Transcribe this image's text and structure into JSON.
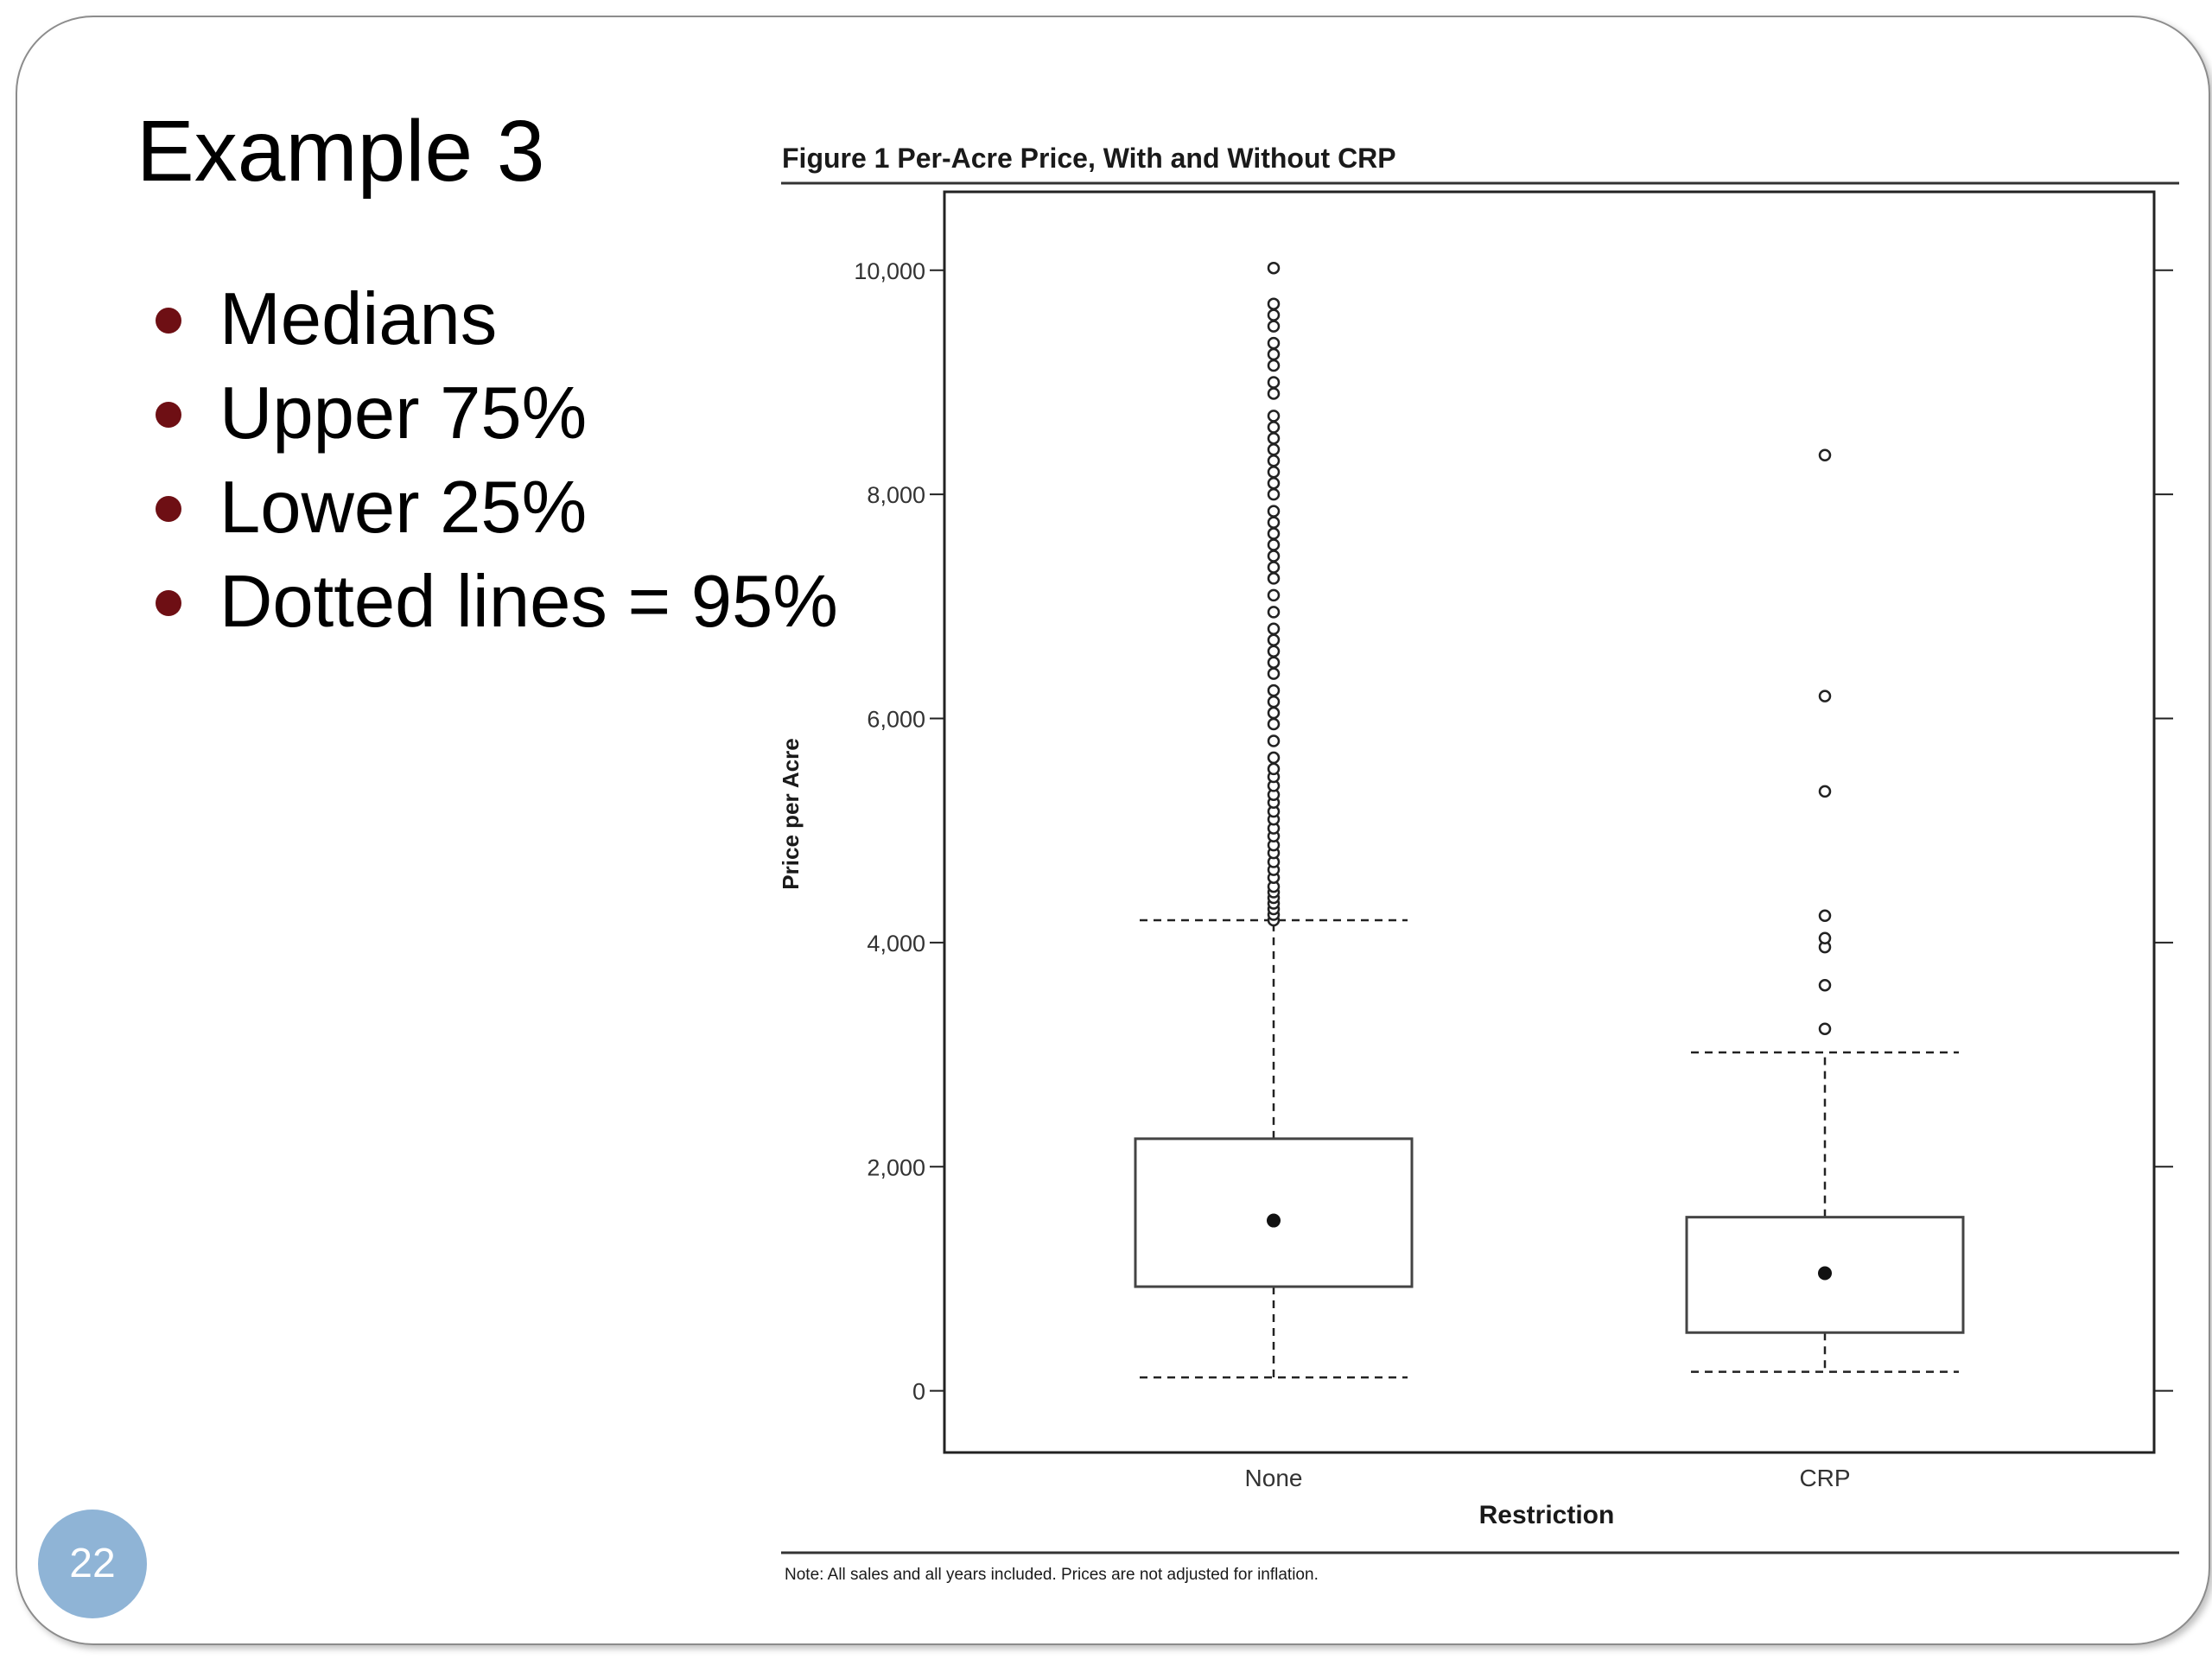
{
  "slide": {
    "title": "Example 3",
    "bullets": [
      "Medians",
      "Upper 75%",
      "Lower 25%",
      "Dotted lines = 95%"
    ],
    "slide_number": "22",
    "bullet_color": "#6e0f14",
    "slide_number_bg": "#8fb4d6"
  },
  "chart_data": {
    "type": "box",
    "title": "Figure 1  Per-Acre Price, With and Without CRP",
    "xlabel": "Restriction",
    "ylabel": "Price per Acre",
    "note": "Note: All sales and all years included. Prices are not adjusted for inflation.",
    "ylim": [
      -550,
      10700
    ],
    "yticks": [
      0,
      2000,
      4000,
      6000,
      8000,
      10000
    ],
    "ytick_labels": [
      "0",
      "2,000",
      "4,000",
      "6,000",
      "8,000",
      "10,000"
    ],
    "grid": false,
    "categories": [
      "None",
      "CRP"
    ],
    "boxes": [
      {
        "category": "None",
        "whisker_low": 120,
        "q1": 930,
        "median": 1520,
        "q3": 2250,
        "whisker_high": 4200,
        "outliers": [
          4200,
          4250,
          4300,
          4350,
          4400,
          4450,
          4500,
          4580,
          4650,
          4720,
          4800,
          4870,
          4950,
          5020,
          5100,
          5170,
          5250,
          5320,
          5400,
          5480,
          5550,
          5650,
          5800,
          5950,
          6050,
          6150,
          6250,
          6400,
          6500,
          6600,
          6700,
          6800,
          6950,
          7100,
          7250,
          7350,
          7450,
          7550,
          7650,
          7750,
          7850,
          8000,
          8100,
          8200,
          8300,
          8400,
          8500,
          8600,
          8700,
          8900,
          9000,
          9150,
          9250,
          9350,
          9500,
          9600,
          9700,
          10020
        ]
      },
      {
        "category": "CRP",
        "whisker_low": 170,
        "q1": 520,
        "median": 1050,
        "q3": 1550,
        "whisker_high": 3020,
        "outliers": [
          3230,
          3620,
          3960,
          4040,
          4240,
          5350,
          6200,
          8350
        ]
      }
    ]
  }
}
